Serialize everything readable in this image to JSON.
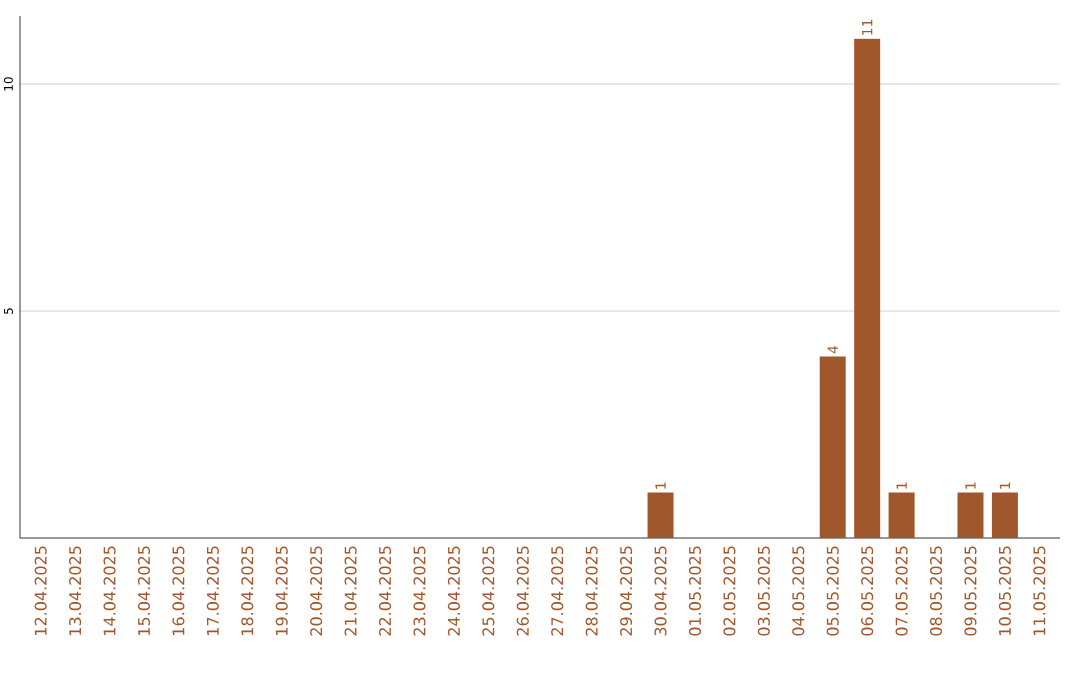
{
  "chart_data": {
    "type": "bar",
    "categories": [
      "12.04.2025",
      "13.04.2025",
      "14.04.2025",
      "15.04.2025",
      "16.04.2025",
      "17.04.2025",
      "18.04.2025",
      "19.04.2025",
      "20.04.2025",
      "21.04.2025",
      "22.04.2025",
      "23.04.2025",
      "24.04.2025",
      "25.04.2025",
      "26.04.2025",
      "27.04.2025",
      "28.04.2025",
      "29.04.2025",
      "30.04.2025",
      "01.05.2025",
      "02.05.2025",
      "03.05.2025",
      "04.05.2025",
      "05.05.2025",
      "06.05.2025",
      "07.05.2025",
      "08.05.2025",
      "09.05.2025",
      "10.05.2025",
      "11.05.2025"
    ],
    "values": [
      0,
      0,
      0,
      0,
      0,
      0,
      0,
      0,
      0,
      0,
      0,
      0,
      0,
      0,
      0,
      0,
      0,
      0,
      1,
      0,
      0,
      0,
      0,
      4,
      11,
      1,
      0,
      1,
      1,
      0
    ],
    "value_labels": [
      null,
      null,
      null,
      null,
      null,
      null,
      null,
      null,
      null,
      null,
      null,
      null,
      null,
      null,
      null,
      null,
      null,
      null,
      "1",
      null,
      null,
      null,
      null,
      "4",
      "11",
      "1",
      null,
      "1",
      "1",
      null
    ],
    "color": "#a0572b",
    "ylim": [
      0,
      11.5
    ],
    "yticks": [
      5,
      10
    ],
    "grid": "y"
  }
}
